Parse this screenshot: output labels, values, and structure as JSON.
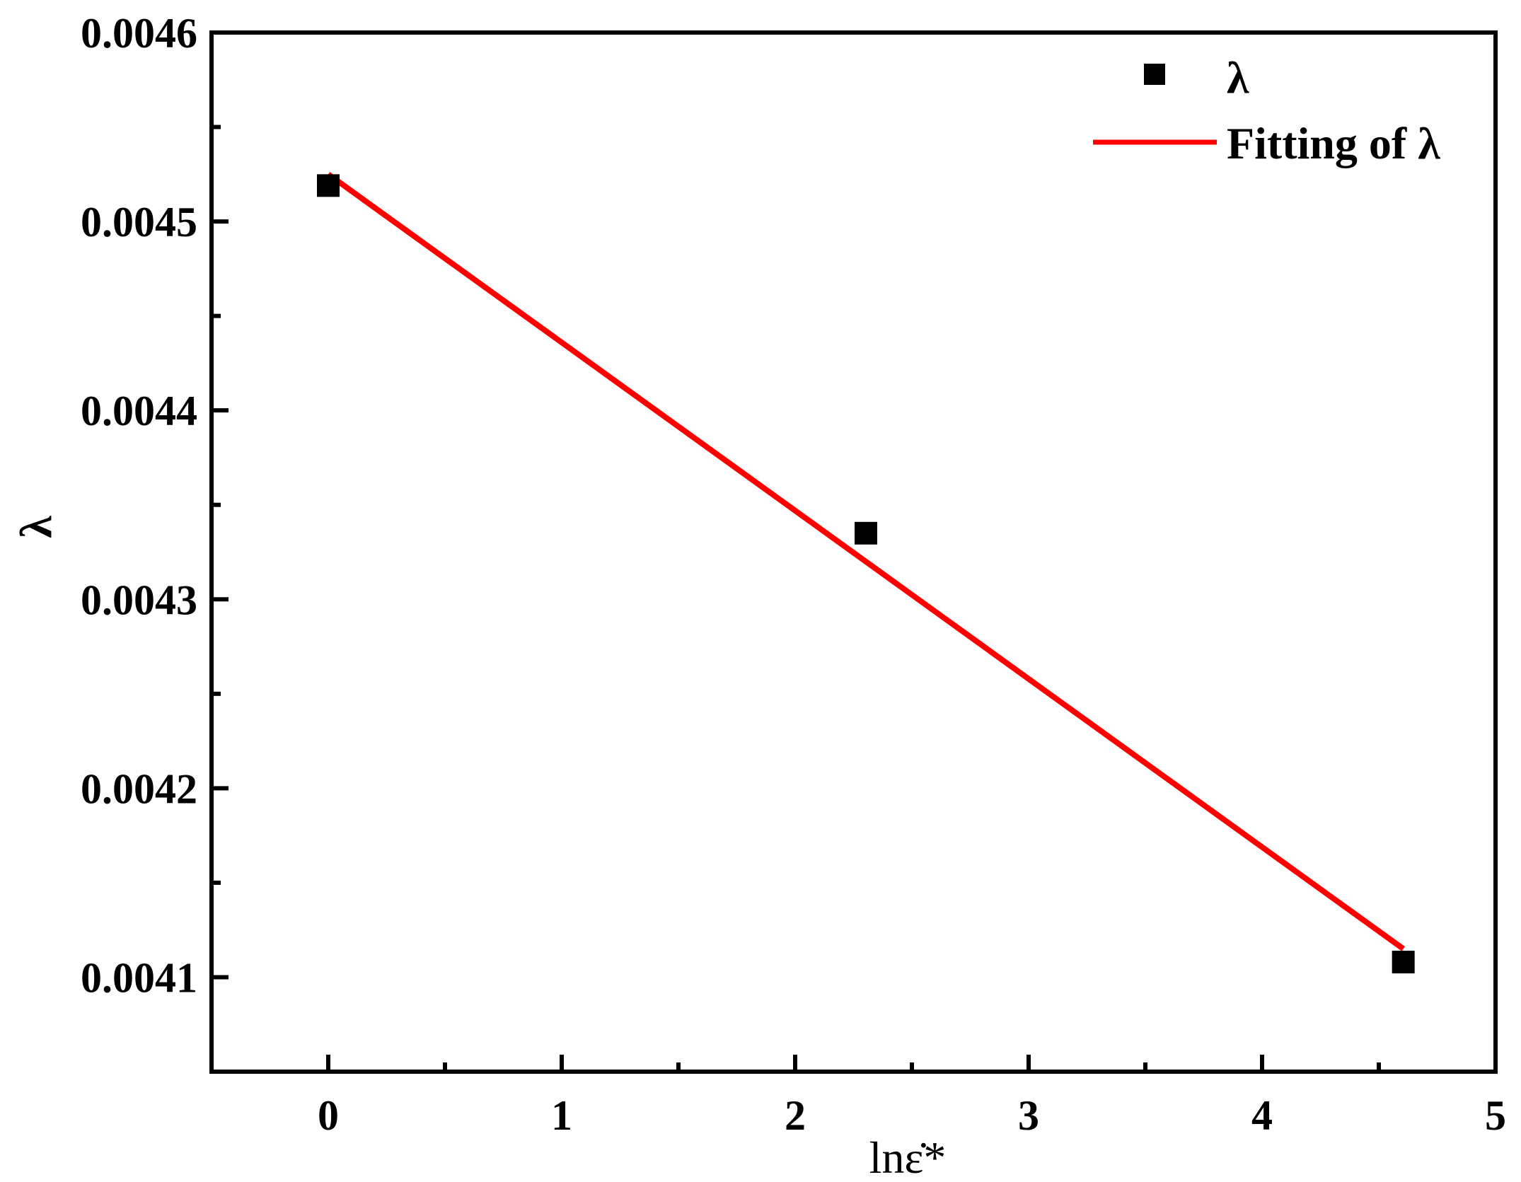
{
  "chart_data": {
    "type": "scatter",
    "xlabel": "lnε̇*",
    "ylabel": "λ",
    "xlim": [
      -0.5,
      5
    ],
    "ylim": [
      0.00405,
      0.0046
    ],
    "x_ticks": [
      0,
      1,
      2,
      3,
      4,
      5
    ],
    "x_tick_labels": [
      "0",
      "1",
      "2",
      "3",
      "4",
      "5"
    ],
    "y_ticks": [
      0.0041,
      0.0042,
      0.0043,
      0.0044,
      0.0045,
      0.0046
    ],
    "y_tick_labels": [
      "0.0041",
      "0.0042",
      "0.0043",
      "0.0044",
      "0.0045",
      "0.0046"
    ],
    "grid": false,
    "legend_position": "top-right",
    "series": [
      {
        "name": "λ",
        "kind": "scatter",
        "marker": "square",
        "color": "#000000",
        "x": [
          0,
          2.303,
          4.605
        ],
        "y": [
          0.004519,
          0.004335,
          0.004108
        ]
      },
      {
        "name": "Fitting of λ",
        "kind": "line",
        "color": "#ff0000",
        "x": [
          0,
          4.605
        ],
        "y": [
          0.004525,
          0.004115
        ]
      }
    ]
  }
}
